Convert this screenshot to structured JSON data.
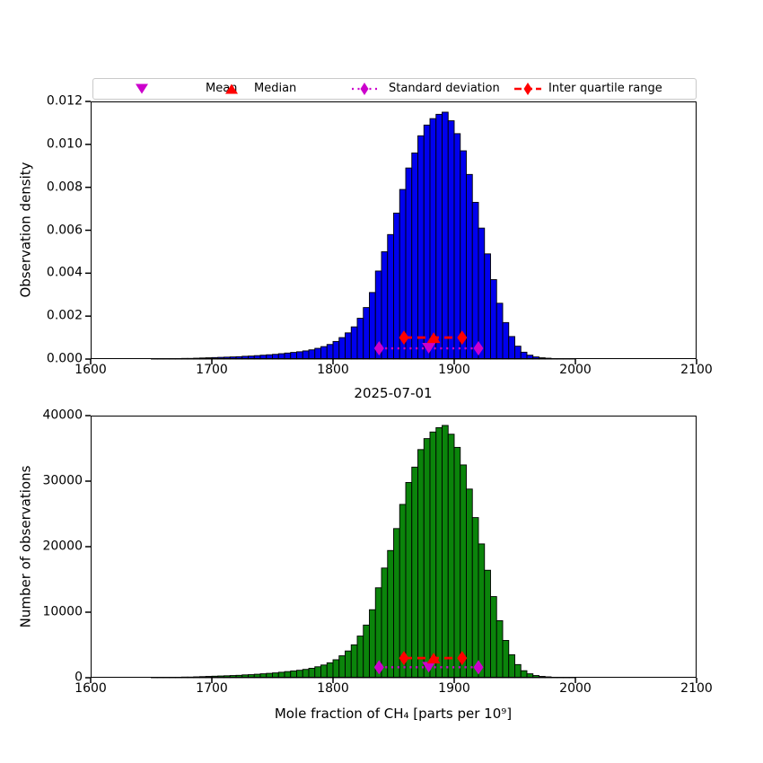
{
  "figure": {
    "background": "#ffffff",
    "legend": {
      "position": "top",
      "items": [
        {
          "label": "Mean",
          "marker": "triangle-down",
          "color": "#cc00cc"
        },
        {
          "label": "Median",
          "marker": "triangle-up",
          "color": "#ff0000"
        },
        {
          "label": "Standard deviation",
          "marker": "diamond-dotted-line",
          "color": "#cc00cc"
        },
        {
          "label": "Inter quartile range",
          "marker": "diamond-dashed-line",
          "color": "#ff0000"
        }
      ]
    }
  },
  "chart_data": [
    {
      "type": "bar",
      "subtype": "histogram",
      "title": "",
      "xlabel": "2025-07-01",
      "ylabel": "Observation density",
      "xlim": [
        1600,
        2100
      ],
      "ylim": [
        0,
        0.012
      ],
      "grid": false,
      "bar_color": "#0000ee",
      "bar_edge_color": "#000000",
      "xticks": [
        1600,
        1700,
        1800,
        1900,
        2000,
        2100
      ],
      "xtick_labels": [
        "1600",
        "1700",
        "1800",
        "1900",
        "2000",
        "2100"
      ],
      "yticks": [
        0,
        0.002,
        0.004,
        0.006,
        0.008,
        0.01,
        0.012
      ],
      "ytick_labels": [
        "0.000",
        "0.002",
        "0.004",
        "0.006",
        "0.008",
        "0.010",
        "0.012"
      ],
      "bin_width": 5,
      "bin_centers": [
        1652.5,
        1657.5,
        1662.5,
        1667.5,
        1672.5,
        1677.5,
        1682.5,
        1687.5,
        1692.5,
        1697.5,
        1702.5,
        1707.5,
        1712.5,
        1717.5,
        1722.5,
        1727.5,
        1732.5,
        1737.5,
        1742.5,
        1747.5,
        1752.5,
        1757.5,
        1762.5,
        1767.5,
        1772.5,
        1777.5,
        1782.5,
        1787.5,
        1792.5,
        1797.5,
        1802.5,
        1807.5,
        1812.5,
        1817.5,
        1822.5,
        1827.5,
        1832.5,
        1837.5,
        1842.5,
        1847.5,
        1852.5,
        1857.5,
        1862.5,
        1867.5,
        1872.5,
        1877.5,
        1882.5,
        1887.5,
        1892.5,
        1897.5,
        1902.5,
        1907.5,
        1912.5,
        1917.5,
        1922.5,
        1927.5,
        1932.5,
        1937.5,
        1942.5,
        1947.5,
        1952.5,
        1957.5,
        1962.5,
        1967.5,
        1972.5,
        1977.5,
        1982.5,
        1987.5,
        1992.5,
        1997.5
      ],
      "values": [
        1e-05,
        1e-05,
        2e-05,
        2e-05,
        2e-05,
        3e-05,
        3e-05,
        4e-05,
        5e-05,
        6e-05,
        7e-05,
        8e-05,
        9e-05,
        0.0001,
        0.00011,
        0.00013,
        0.00014,
        0.00016,
        0.00018,
        0.0002,
        0.00022,
        0.00025,
        0.00028,
        0.00031,
        0.00034,
        0.00038,
        0.00043,
        0.0005,
        0.00058,
        0.00068,
        0.00082,
        0.001,
        0.00122,
        0.0015,
        0.0019,
        0.0024,
        0.0031,
        0.0041,
        0.005,
        0.0058,
        0.0068,
        0.0079,
        0.0089,
        0.0096,
        0.0104,
        0.0109,
        0.0112,
        0.0114,
        0.0115,
        0.0111,
        0.0105,
        0.0097,
        0.0086,
        0.0073,
        0.0061,
        0.0049,
        0.0037,
        0.0026,
        0.0017,
        0.00105,
        0.0006,
        0.00032,
        0.00018,
        0.0001,
        6e-05,
        4e-05,
        2e-05,
        1e-05,
        1e-05,
        1e-05
      ],
      "stats": {
        "mean": 1879,
        "median": 1883,
        "std": 41,
        "std_lo": 1838,
        "std_hi": 1920,
        "q1": 1858.5,
        "q3": 1906.5,
        "std_line_y": 0.0005,
        "iqr_line_y": 0.001,
        "mean_color": "#cc00cc",
        "median_color": "#ff0000"
      }
    },
    {
      "type": "bar",
      "subtype": "histogram",
      "title": "",
      "xlabel": "Mole fraction of CH₄ [parts per 10⁹]",
      "ylabel": "Number of observations",
      "xlim": [
        1600,
        2100
      ],
      "ylim": [
        0,
        40000
      ],
      "grid": false,
      "bar_color": "#0b840b",
      "bar_edge_color": "#000000",
      "xticks": [
        1600,
        1700,
        1800,
        1900,
        2000,
        2100
      ],
      "xtick_labels": [
        "1600",
        "1700",
        "1800",
        "1900",
        "2000",
        "2100"
      ],
      "yticks": [
        0,
        10000,
        20000,
        30000,
        40000
      ],
      "ytick_labels": [
        "0",
        "10000",
        "20000",
        "30000",
        "40000"
      ],
      "bin_width": 5,
      "bin_centers": [
        1652.5,
        1657.5,
        1662.5,
        1667.5,
        1672.5,
        1677.5,
        1682.5,
        1687.5,
        1692.5,
        1697.5,
        1702.5,
        1707.5,
        1712.5,
        1717.5,
        1722.5,
        1727.5,
        1732.5,
        1737.5,
        1742.5,
        1747.5,
        1752.5,
        1757.5,
        1762.5,
        1767.5,
        1772.5,
        1777.5,
        1782.5,
        1787.5,
        1792.5,
        1797.5,
        1802.5,
        1807.5,
        1812.5,
        1817.5,
        1822.5,
        1827.5,
        1832.5,
        1837.5,
        1842.5,
        1847.5,
        1852.5,
        1857.5,
        1862.5,
        1867.5,
        1872.5,
        1877.5,
        1882.5,
        1887.5,
        1892.5,
        1897.5,
        1902.5,
        1907.5,
        1912.5,
        1917.5,
        1922.5,
        1927.5,
        1932.5,
        1937.5,
        1942.5,
        1947.5,
        1952.5,
        1957.5,
        1962.5,
        1967.5,
        1972.5,
        1977.5,
        1982.5,
        1987.5,
        1992.5,
        1997.5
      ],
      "values": [
        33,
        33,
        67,
        67,
        67,
        100,
        100,
        134,
        167,
        201,
        234,
        268,
        301,
        335,
        368,
        435,
        469,
        536,
        603,
        670,
        737,
        837,
        937,
        1038,
        1138,
        1272,
        1440,
        1674,
        1942,
        2277,
        2745,
        3348,
        4085,
        5022,
        6361,
        8035,
        10379,
        13727,
        16740,
        19418,
        22766,
        26449,
        29797,
        32141,
        34819,
        36493,
        37498,
        38167,
        38502,
        37163,
        35154,
        32476,
        28793,
        24440,
        20423,
        16405,
        12388,
        8705,
        5692,
        3515,
        2009,
        1071,
        603,
        335,
        201,
        134,
        67,
        33,
        33,
        33
      ],
      "stats": {
        "mean": 1879,
        "median": 1883,
        "std": 41,
        "std_lo": 1838,
        "std_hi": 1920,
        "q1": 1858.5,
        "q3": 1906.5,
        "std_line_y": 1600,
        "iqr_line_y": 3000,
        "mean_color": "#cc00cc",
        "median_color": "#ff0000"
      }
    }
  ]
}
